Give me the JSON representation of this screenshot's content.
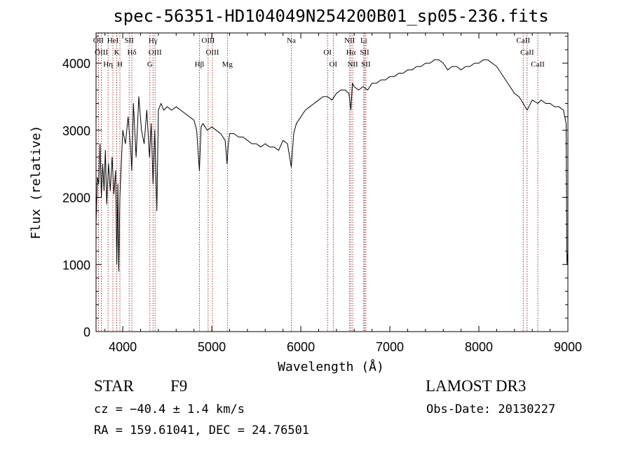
{
  "chart_data": {
    "type": "line",
    "title": "spec-56351-HD104049N254200B01_sp05-236.fits",
    "xlabel": "Wavelength (Å)",
    "ylabel": "Flux (relative)",
    "xlim": [
      3700,
      9000
    ],
    "ylim": [
      0,
      4450
    ],
    "x_ticks": [
      4000,
      5000,
      6000,
      7000,
      8000,
      9000
    ],
    "y_ticks": [
      0,
      1000,
      2000,
      3000,
      4000
    ],
    "grid": false,
    "series": [
      {
        "x": [
          3700,
          3715,
          3730,
          3745,
          3760,
          3775,
          3790,
          3805,
          3820,
          3840,
          3860,
          3880,
          3900,
          3920,
          3933,
          3945,
          3955,
          3968,
          3980,
          4000,
          4030,
          4060,
          4090,
          4102,
          4120,
          4150,
          4180,
          4210,
          4240,
          4270,
          4300,
          4320,
          4340,
          4360,
          4383,
          4400,
          4430,
          4460,
          4500,
          4550,
          4600,
          4650,
          4700,
          4750,
          4800,
          4830,
          4861,
          4880,
          4900,
          4950,
          5000,
          5050,
          5100,
          5150,
          5172,
          5183,
          5200,
          5250,
          5300,
          5350,
          5400,
          5450,
          5500,
          5550,
          5600,
          5650,
          5700,
          5750,
          5800,
          5850,
          5893,
          5920,
          5950,
          6000,
          6050,
          6100,
          6150,
          6200,
          6250,
          6300,
          6350,
          6400,
          6450,
          6500,
          6540,
          6563,
          6580,
          6600,
          6650,
          6700,
          6750,
          6800,
          6850,
          6900,
          6950,
          7000,
          7050,
          7100,
          7150,
          7200,
          7250,
          7300,
          7350,
          7400,
          7450,
          7500,
          7550,
          7600,
          7650,
          7700,
          7750,
          7800,
          7850,
          7900,
          7950,
          8000,
          8050,
          8100,
          8150,
          8200,
          8250,
          8300,
          8350,
          8400,
          8450,
          8498,
          8542,
          8600,
          8662,
          8700,
          8750,
          8800,
          8850,
          8900,
          8950,
          8980,
          8990,
          9000
        ],
        "y": [
          1600,
          2300,
          2200,
          2800,
          2000,
          2500,
          2100,
          2700,
          1900,
          2500,
          2100,
          2600,
          2050,
          2400,
          1000,
          2200,
          900,
          2000,
          2400,
          3000,
          2800,
          3200,
          2700,
          2400,
          3400,
          2600,
          3500,
          3000,
          2800,
          3300,
          2600,
          3100,
          2200,
          3000,
          1800,
          3300,
          3400,
          3300,
          3350,
          3300,
          3350,
          3300,
          3250,
          3200,
          3150,
          3000,
          2400,
          3050,
          3100,
          3000,
          3050,
          3000,
          2950,
          2850,
          2500,
          2750,
          2950,
          2950,
          2900,
          2900,
          2850,
          2800,
          2800,
          2750,
          2800,
          2750,
          2750,
          2700,
          2850,
          2800,
          2450,
          2950,
          3100,
          3200,
          3300,
          3350,
          3400,
          3450,
          3500,
          3500,
          3450,
          3550,
          3600,
          3600,
          3550,
          3300,
          3700,
          3650,
          3600,
          3650,
          3600,
          3700,
          3700,
          3750,
          3750,
          3800,
          3800,
          3850,
          3850,
          3900,
          3900,
          3950,
          3950,
          4000,
          4000,
          4050,
          4050,
          4000,
          3900,
          3950,
          3950,
          3900,
          3950,
          3950,
          4000,
          4000,
          4050,
          4050,
          4000,
          3950,
          3850,
          3750,
          3650,
          3550,
          3500,
          3400,
          3300,
          3450,
          3400,
          3450,
          3400,
          3400,
          3350,
          3350,
          3300,
          3100,
          1000,
          1200
        ]
      }
    ],
    "line_markers": [
      {
        "wave": 3727,
        "label": "OII"
      },
      {
        "wave": 3760,
        "label": "OIII"
      },
      {
        "wave": 3835,
        "label": "Hη"
      },
      {
        "wave": 3889,
        "label": "HeI"
      },
      {
        "wave": 3933,
        "label": "K"
      },
      {
        "wave": 3968,
        "label": "H"
      },
      {
        "wave": 4072,
        "label": "SII"
      },
      {
        "wave": 4102,
        "label": "Hδ"
      },
      {
        "wave": 4305,
        "label": "G"
      },
      {
        "wave": 4340,
        "label": "Hγ"
      },
      {
        "wave": 4363,
        "label": "OIII"
      },
      {
        "wave": 4861,
        "label": "Hβ"
      },
      {
        "wave": 4959,
        "label": "OIII"
      },
      {
        "wave": 5007,
        "label": "OIII"
      },
      {
        "wave": 5175,
        "label": "Mg"
      },
      {
        "wave": 5893,
        "label": "Na"
      },
      {
        "wave": 6300,
        "label": "OI"
      },
      {
        "wave": 6364,
        "label": "OI"
      },
      {
        "wave": 6548,
        "label": "NII"
      },
      {
        "wave": 6563,
        "label": "Hα"
      },
      {
        "wave": 6583,
        "label": "NII"
      },
      {
        "wave": 6707,
        "label": "Li"
      },
      {
        "wave": 6716,
        "label": "SII"
      },
      {
        "wave": 6731,
        "label": "SII"
      },
      {
        "wave": 8498,
        "label": "CaII"
      },
      {
        "wave": 8542,
        "label": "CaII"
      },
      {
        "wave": 8662,
        "label": "CaII"
      }
    ],
    "colors": {
      "spectrum": "#000000",
      "markers": "#8b0000",
      "axes": "#000000"
    }
  },
  "info": {
    "object_type": "STAR",
    "subclass": "F9",
    "survey": "LAMOST DR3",
    "cz": "cz = −40.4 ± 1.4 km/s",
    "obs_date": "Obs-Date: 20130227",
    "radec": "RA = 159.61041, DEC =  24.76501"
  }
}
